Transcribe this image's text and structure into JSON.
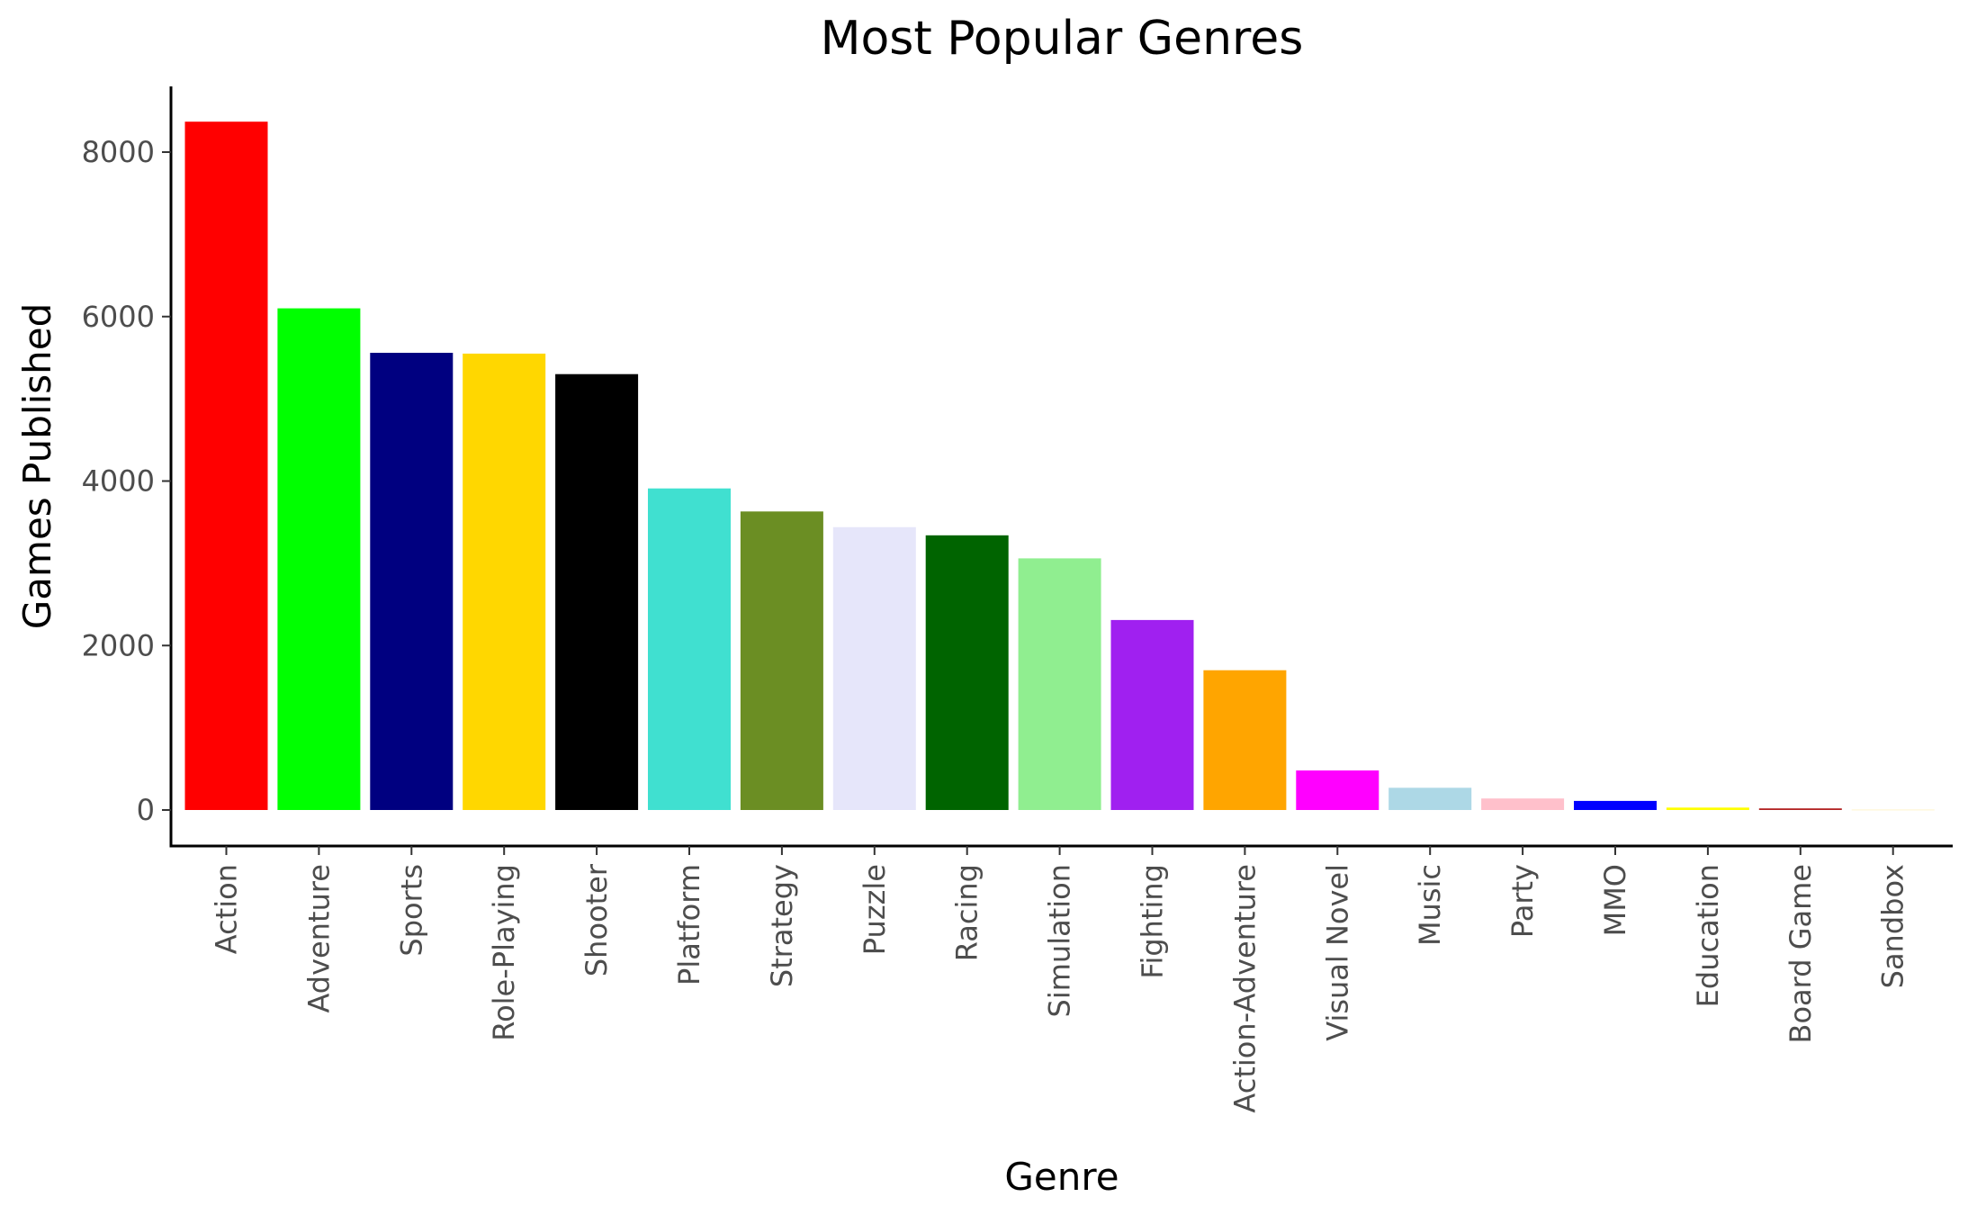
{
  "chart_data": {
    "type": "bar",
    "title": "Most Popular Genres",
    "xlabel": "Genre",
    "ylabel": "Games Published",
    "ylim": [
      -400,
      8800
    ],
    "yticks": [
      0,
      2000,
      4000,
      6000,
      8000
    ],
    "ytick_labels": [
      "0",
      "2000",
      "4000",
      "6000",
      "8000"
    ],
    "grid": false,
    "legend": "none",
    "categories": [
      "Action",
      "Adventure",
      "Sports",
      "Role-Playing",
      "Shooter",
      "Platform",
      "Strategy",
      "Puzzle",
      "Racing",
      "Simulation",
      "Fighting",
      "Action-Adventure",
      "Visual Novel",
      "Music",
      "Party",
      "MMO",
      "Education",
      "Board Game",
      "Sandbox"
    ],
    "values": [
      8370,
      6100,
      5560,
      5550,
      5300,
      3910,
      3630,
      3440,
      3340,
      3060,
      2310,
      1700,
      480,
      270,
      140,
      110,
      30,
      20,
      10
    ],
    "colors": [
      "#FF0000",
      "#00FF00",
      "#000080",
      "#FFD700",
      "#000000",
      "#40E0D0",
      "#6B8E23",
      "#E6E6FA",
      "#006400",
      "#90EE90",
      "#A020F0",
      "#FFA500",
      "#FF00FF",
      "#ADD8E6",
      "#FFC0CB",
      "#0000FF",
      "#FFFF00",
      "#B22222",
      "#FFF8DC"
    ]
  }
}
